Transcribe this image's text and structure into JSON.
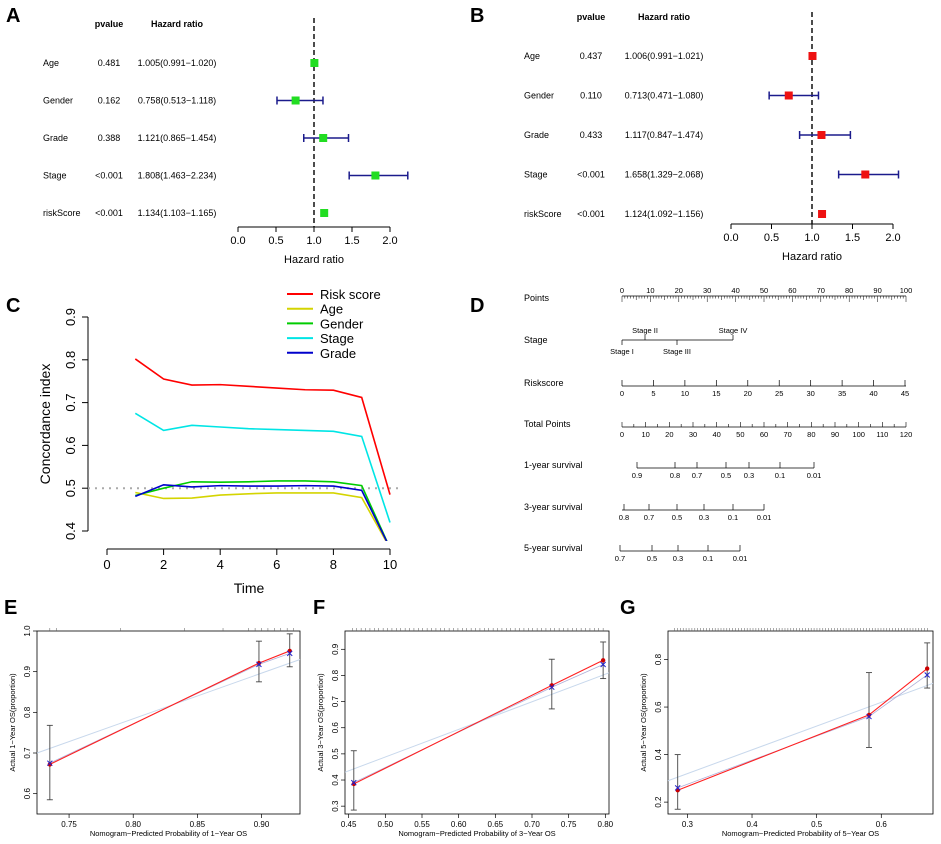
{
  "panel_labels": [
    "A",
    "B",
    "C",
    "D",
    "E",
    "F",
    "G"
  ],
  "chart_data": [
    {
      "id": "A",
      "type": "forest",
      "header": {
        "pvalue": "pvalue",
        "hr": "Hazard ratio"
      },
      "xlabel": "Hazard ratio",
      "xlim": [
        0,
        2.0
      ],
      "xticks": [
        "0.0",
        "0.5",
        "1.0",
        "1.5",
        "2.0"
      ],
      "marker_color": "#22dd22",
      "rows": [
        {
          "name": "Age",
          "pvalue": "0.481",
          "hr_text": "1.005(0.991−1.020)",
          "hr": 1.005,
          "lo": 0.991,
          "hi": 1.02
        },
        {
          "name": "Gender",
          "pvalue": "0.162",
          "hr_text": "0.758(0.513−1.118)",
          "hr": 0.758,
          "lo": 0.513,
          "hi": 1.118
        },
        {
          "name": "Grade",
          "pvalue": "0.388",
          "hr_text": "1.121(0.865−1.454)",
          "hr": 1.121,
          "lo": 0.865,
          "hi": 1.454
        },
        {
          "name": "Stage",
          "pvalue": "<0.001",
          "hr_text": "1.808(1.463−2.234)",
          "hr": 1.808,
          "lo": 1.463,
          "hi": 2.234
        },
        {
          "name": "riskScore",
          "pvalue": "<0.001",
          "hr_text": "1.134(1.103−1.165)",
          "hr": 1.134,
          "lo": 1.103,
          "hi": 1.165
        }
      ]
    },
    {
      "id": "B",
      "type": "forest",
      "header": {
        "pvalue": "pvalue",
        "hr": "Hazard ratio"
      },
      "xlabel": "Hazard ratio",
      "xlim": [
        0,
        2.0
      ],
      "xticks": [
        "0.0",
        "0.5",
        "1.0",
        "1.5",
        "2.0"
      ],
      "marker_color": "#ee1111",
      "rows": [
        {
          "name": "Age",
          "pvalue": "0.437",
          "hr_text": "1.006(0.991−1.021)",
          "hr": 1.006,
          "lo": 0.991,
          "hi": 1.021
        },
        {
          "name": "Gender",
          "pvalue": "0.110",
          "hr_text": "0.713(0.471−1.080)",
          "hr": 0.713,
          "lo": 0.471,
          "hi": 1.08
        },
        {
          "name": "Grade",
          "pvalue": "0.433",
          "hr_text": "1.117(0.847−1.474)",
          "hr": 1.117,
          "lo": 0.847,
          "hi": 1.474
        },
        {
          "name": "Stage",
          "pvalue": "<0.001",
          "hr_text": "1.658(1.329−2.068)",
          "hr": 1.658,
          "lo": 1.329,
          "hi": 2.068
        },
        {
          "name": "riskScore",
          "pvalue": "<0.001",
          "hr_text": "1.124(1.092−1.156)",
          "hr": 1.124,
          "lo": 1.092,
          "hi": 1.156
        }
      ]
    },
    {
      "id": "C",
      "type": "line",
      "xlabel": "Time",
      "ylabel": "Concordance index",
      "xlim": [
        0,
        10
      ],
      "ylim": [
        0.4,
        0.9
      ],
      "xticks": [
        "0",
        "2",
        "4",
        "6",
        "8",
        "10"
      ],
      "yticks": [
        "0.4",
        "0.5",
        "0.6",
        "0.7",
        "0.8",
        "0.9"
      ],
      "reference_line": 0.5,
      "x": [
        1,
        2,
        3,
        4,
        5,
        6,
        7,
        8,
        9,
        10
      ],
      "series": [
        {
          "name": "Risk score",
          "color": "#ff0000",
          "values": [
            0.802,
            0.755,
            0.741,
            0.742,
            0.738,
            0.734,
            0.73,
            0.729,
            0.712,
            0.485
          ]
        },
        {
          "name": "Age",
          "color": "#d4d400",
          "values": [
            0.49,
            0.476,
            0.477,
            0.484,
            0.487,
            0.489,
            0.489,
            0.489,
            0.478,
            0.36
          ]
        },
        {
          "name": "Gender",
          "color": "#00cc00",
          "values": [
            0.483,
            0.5,
            0.515,
            0.514,
            0.515,
            0.517,
            0.517,
            0.515,
            0.506,
            0.36
          ]
        },
        {
          "name": "Stage",
          "color": "#00e5e5",
          "values": [
            0.675,
            0.635,
            0.647,
            0.643,
            0.639,
            0.637,
            0.635,
            0.633,
            0.621,
            0.42
          ]
        },
        {
          "name": "Grade",
          "color": "#0000cc",
          "values": [
            0.481,
            0.508,
            0.503,
            0.506,
            0.505,
            0.505,
            0.506,
            0.505,
            0.495,
            0.36
          ]
        }
      ]
    },
    {
      "id": "D",
      "type": "nomogram",
      "rows": [
        {
          "label": "Points",
          "ticks": [
            "0",
            "10",
            "20",
            "30",
            "40",
            "50",
            "60",
            "70",
            "80",
            "90",
            "100"
          ]
        },
        {
          "label": "Stage",
          "ticks_above": [
            "Stage II",
            "Stage IV"
          ],
          "ticks_below": [
            "Stage I",
            "Stage III"
          ]
        },
        {
          "label": "Riskscore",
          "ticks": [
            "0",
            "5",
            "10",
            "15",
            "20",
            "25",
            "30",
            "35",
            "40",
            "45"
          ]
        },
        {
          "label": "Total Points",
          "ticks": [
            "0",
            "10",
            "20",
            "30",
            "40",
            "50",
            "60",
            "70",
            "80",
            "90",
            "100",
            "110",
            "120"
          ]
        },
        {
          "label": "1-year survival",
          "ticks": [
            "0.9",
            "0.8",
            "0.7",
            "0.5",
            "0.3",
            "0.1",
            "0.01"
          ]
        },
        {
          "label": "3-year survival",
          "ticks": [
            "0.8",
            "0.7",
            "0.5",
            "0.3",
            "0.1",
            "0.01"
          ]
        },
        {
          "label": "5-year survival",
          "ticks": [
            "0.7",
            "0.5",
            "0.3",
            "0.1",
            "0.01"
          ]
        }
      ]
    },
    {
      "id": "E",
      "type": "calibration",
      "xlabel": "Nomogram−Predicted Probability of 1−Year OS",
      "ylabel": "Actual 1−Year OS(proportion)",
      "xlim": [
        0.725,
        0.93
      ],
      "ylim": [
        0.55,
        1.0
      ],
      "xtick_values": [
        0.75,
        0.8,
        0.85,
        0.9
      ],
      "xticks": [
        "0.75",
        "0.80",
        "0.85",
        "0.90"
      ],
      "ytick_values": [
        0.6,
        0.7,
        0.8,
        0.9,
        1.0
      ],
      "yticks": [
        "0.6",
        "0.7",
        "0.8",
        "0.9",
        "1.0"
      ],
      "points": [
        {
          "x": 0.735,
          "y": 0.672,
          "lo": 0.585,
          "hi": 0.768
        },
        {
          "x": 0.898,
          "y": 0.921,
          "lo": 0.875,
          "hi": 0.975
        },
        {
          "x": 0.922,
          "y": 0.951,
          "lo": 0.912,
          "hi": 0.993
        }
      ],
      "bias_corrected": [
        {
          "x": 0.735,
          "y": 0.675
        },
        {
          "x": 0.898,
          "y": 0.918
        },
        {
          "x": 0.922,
          "y": 0.945
        }
      ]
    },
    {
      "id": "F",
      "type": "calibration",
      "xlabel": "Nomogram−Predicted Probability of 3−Year OS",
      "ylabel": "Actual 3−Year OS(proportion)",
      "xlim": [
        0.445,
        0.805
      ],
      "ylim": [
        0.27,
        0.97
      ],
      "xtick_values": [
        0.45,
        0.5,
        0.55,
        0.6,
        0.65,
        0.7,
        0.75,
        0.8
      ],
      "xticks": [
        "0.45",
        "0.50",
        "0.55",
        "0.60",
        "0.65",
        "0.70",
        "0.75",
        "0.80"
      ],
      "ytick_values": [
        0.3,
        0.4,
        0.5,
        0.6,
        0.7,
        0.8,
        0.9
      ],
      "yticks": [
        "0.3",
        "0.4",
        "0.5",
        "0.6",
        "0.7",
        "0.8",
        "0.9"
      ],
      "points": [
        {
          "x": 0.457,
          "y": 0.385,
          "lo": 0.285,
          "hi": 0.512
        },
        {
          "x": 0.727,
          "y": 0.762,
          "lo": 0.672,
          "hi": 0.862
        },
        {
          "x": 0.797,
          "y": 0.858,
          "lo": 0.788,
          "hi": 0.928
        }
      ],
      "bias_corrected": [
        {
          "x": 0.457,
          "y": 0.39
        },
        {
          "x": 0.727,
          "y": 0.755
        },
        {
          "x": 0.797,
          "y": 0.842
        }
      ]
    },
    {
      "id": "G",
      "type": "calibration",
      "xlabel": "Nomogram−Predicted Probability of 5−Year OS",
      "ylabel": "Actual 5−Year OS(proportion)",
      "xlim": [
        0.27,
        0.68
      ],
      "ylim": [
        0.15,
        0.92
      ],
      "xtick_values": [
        0.3,
        0.4,
        0.5,
        0.6
      ],
      "xticks": [
        "0.3",
        "0.4",
        "0.5",
        "0.6"
      ],
      "ytick_values": [
        0.2,
        0.4,
        0.6,
        0.8
      ],
      "yticks": [
        "0.2",
        "0.4",
        "0.6",
        "0.8"
      ],
      "points": [
        {
          "x": 0.285,
          "y": 0.25,
          "lo": 0.17,
          "hi": 0.4
        },
        {
          "x": 0.581,
          "y": 0.567,
          "lo": 0.43,
          "hi": 0.745
        },
        {
          "x": 0.671,
          "y": 0.762,
          "lo": 0.68,
          "hi": 0.87
        }
      ],
      "bias_corrected": [
        {
          "x": 0.285,
          "y": 0.26
        },
        {
          "x": 0.581,
          "y": 0.56
        },
        {
          "x": 0.671,
          "y": 0.735
        }
      ]
    }
  ]
}
